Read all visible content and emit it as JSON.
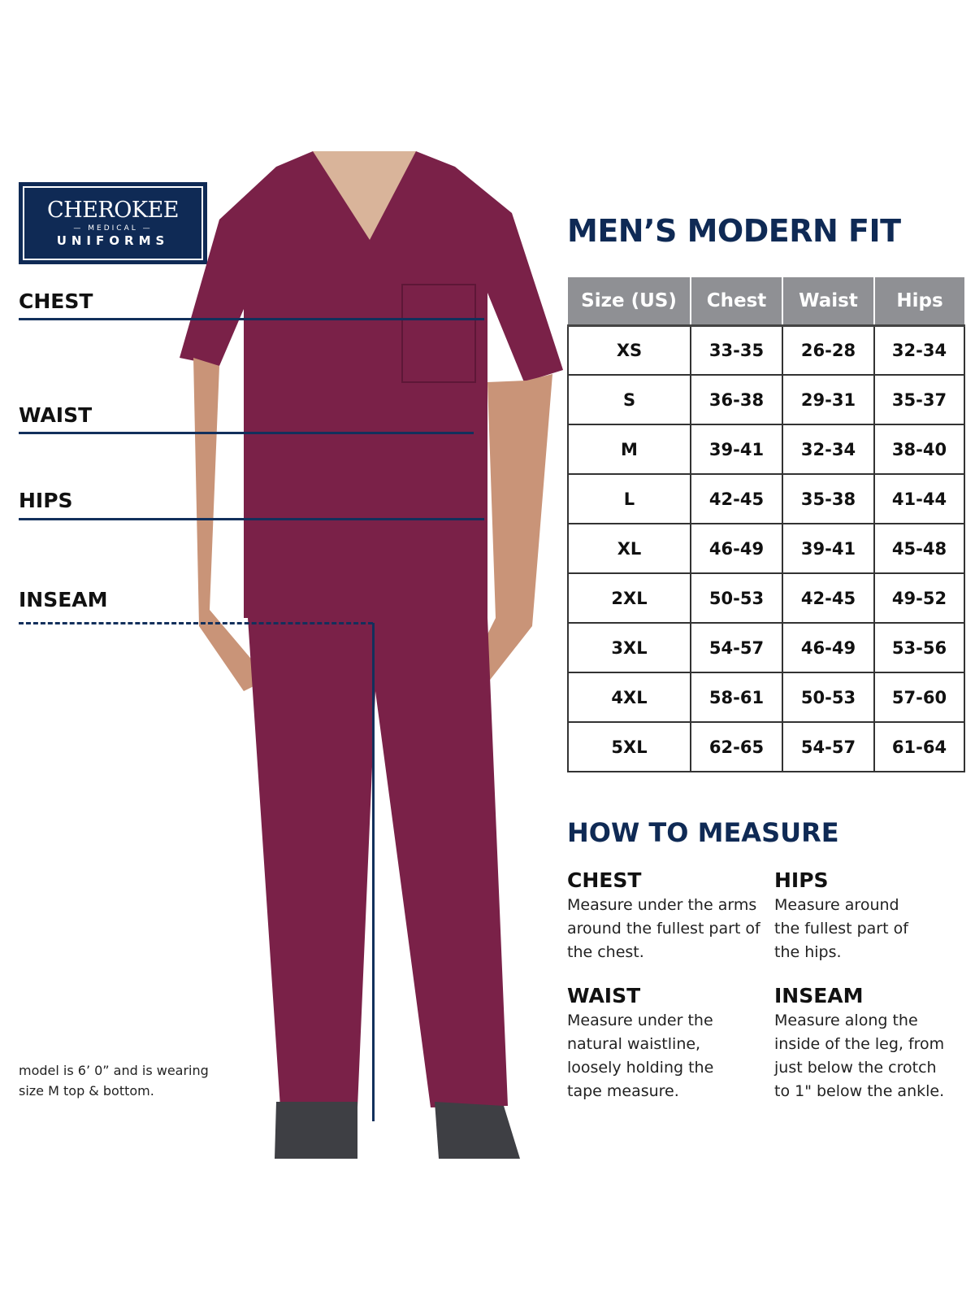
{
  "logo": {
    "brand": "CHEROKEE",
    "sub": "MEDICAL",
    "line2": "UNIFORMS"
  },
  "measure_labels": [
    "CHEST",
    "WAIST",
    "HIPS",
    "INSEAM"
  ],
  "title": "MEN’S MODERN FIT",
  "table": {
    "headers": [
      "Size (US)",
      "Chest",
      "Waist",
      "Hips"
    ],
    "rows": [
      [
        "XS",
        "33-35",
        "26-28",
        "32-34"
      ],
      [
        "S",
        "36-38",
        "29-31",
        "35-37"
      ],
      [
        "M",
        "39-41",
        "32-34",
        "38-40"
      ],
      [
        "L",
        "42-45",
        "35-38",
        "41-44"
      ],
      [
        "XL",
        "46-49",
        "39-41",
        "45-48"
      ],
      [
        "2XL",
        "50-53",
        "42-45",
        "49-52"
      ],
      [
        "3XL",
        "54-57",
        "46-49",
        "53-56"
      ],
      [
        "4XL",
        "58-61",
        "50-53",
        "57-60"
      ],
      [
        "5XL",
        "62-65",
        "54-57",
        "61-64"
      ]
    ]
  },
  "how_to": {
    "title": "HOW TO MEASURE",
    "sections": [
      {
        "title": "CHEST",
        "text": "Measure under the arms around the fullest part of the chest."
      },
      {
        "title": "HIPS",
        "text": "Measure around the fullest part of the hips."
      },
      {
        "title": "WAIST",
        "text": "Measure under the natural waistline, loosely holding the tape measure."
      },
      {
        "title": "INSEAM",
        "text": "Measure along the inside of the leg, from just below the crotch to 1\" below the ankle."
      }
    ]
  },
  "model_note": "model is 6’ 0” and is wearing size M top & bottom.",
  "colors": {
    "navy": "#0f2a55",
    "scrub": "#7a2148",
    "header_gray": "#8f9094"
  }
}
